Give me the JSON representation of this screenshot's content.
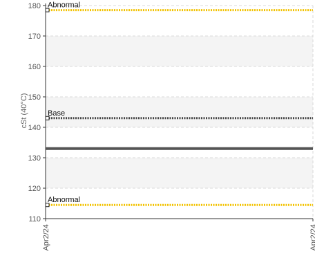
{
  "chart_data": {
    "type": "line",
    "ylabel": "cSt (40°C)",
    "ylim": [
      110,
      180
    ],
    "yticks": [
      110,
      120,
      130,
      140,
      150,
      160,
      170,
      180
    ],
    "x": [
      "Apr2/24",
      "Apr2/24"
    ],
    "grid": true,
    "banded_background": true,
    "series": [
      {
        "values": [
          133,
          133
        ],
        "color": "#555555"
      }
    ],
    "reference_lines": [
      {
        "label": "Abnormal",
        "value": 178.5,
        "color": "#F2C200",
        "style": "dotted"
      },
      {
        "label": "Base",
        "value": 143,
        "color": "#444444",
        "style": "dotted"
      },
      {
        "label": "Abnormal",
        "value": 114.5,
        "color": "#F2C200",
        "style": "dotted"
      }
    ]
  }
}
